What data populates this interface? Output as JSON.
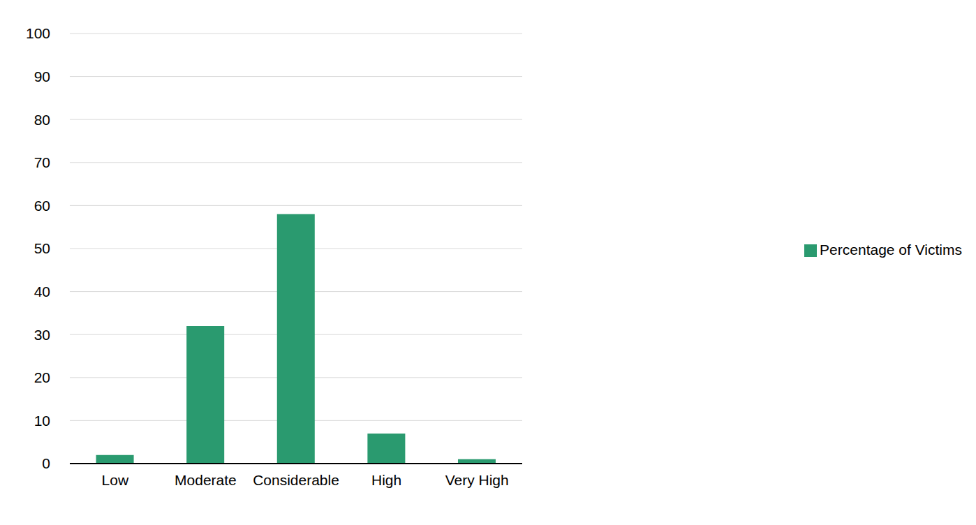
{
  "chart_data": {
    "type": "bar",
    "categories": [
      "Low",
      "Moderate",
      "Considerable",
      "High",
      "Very High"
    ],
    "series": [
      {
        "name": "Percentage of Victims",
        "color": "#2a9a6f",
        "values": [
          2,
          32,
          58,
          7,
          1
        ]
      }
    ],
    "ylim": [
      0,
      100
    ],
    "yticks": [
      0,
      10,
      20,
      30,
      40,
      50,
      60,
      70,
      80,
      90,
      100
    ],
    "grid": true,
    "legend": "right"
  }
}
